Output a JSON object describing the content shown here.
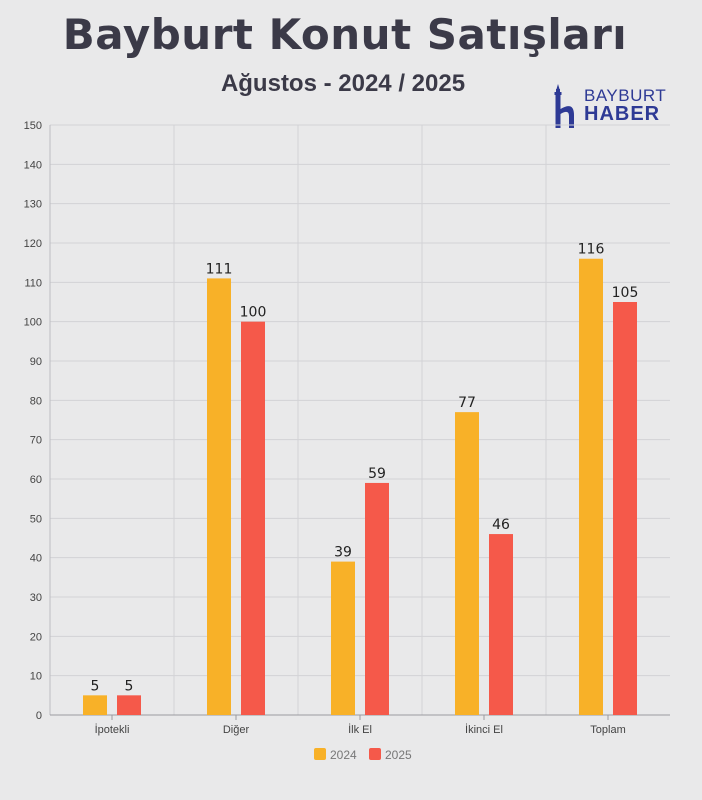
{
  "header": {
    "title": "Bayburt Konut Satışları",
    "subtitle": "Ağustos - 2024 / 2025"
  },
  "logo": {
    "line1": "BAYBURT",
    "line2": "HABER",
    "icon": "minaret-h-icon",
    "color": "#2e3a95"
  },
  "chart_data": {
    "type": "bar",
    "title": "Bayburt Konut Satışları",
    "subtitle": "Ağustos - 2024 / 2025",
    "categories": [
      "İpotekli",
      "Diğer",
      "İlk El",
      "İkinci El",
      "Toplam"
    ],
    "series": [
      {
        "name": "2024",
        "color": "#f8b128",
        "values": [
          5,
          111,
          39,
          77,
          116
        ]
      },
      {
        "name": "2025",
        "color": "#f5594a",
        "values": [
          5,
          100,
          59,
          46,
          105
        ]
      }
    ],
    "yticks": [
      0,
      10,
      20,
      30,
      40,
      50,
      60,
      70,
      80,
      90,
      100,
      110,
      120,
      130,
      140,
      150
    ],
    "ylim": [
      0,
      150
    ],
    "grid": true,
    "legend": "bottom",
    "data_labels": true
  }
}
